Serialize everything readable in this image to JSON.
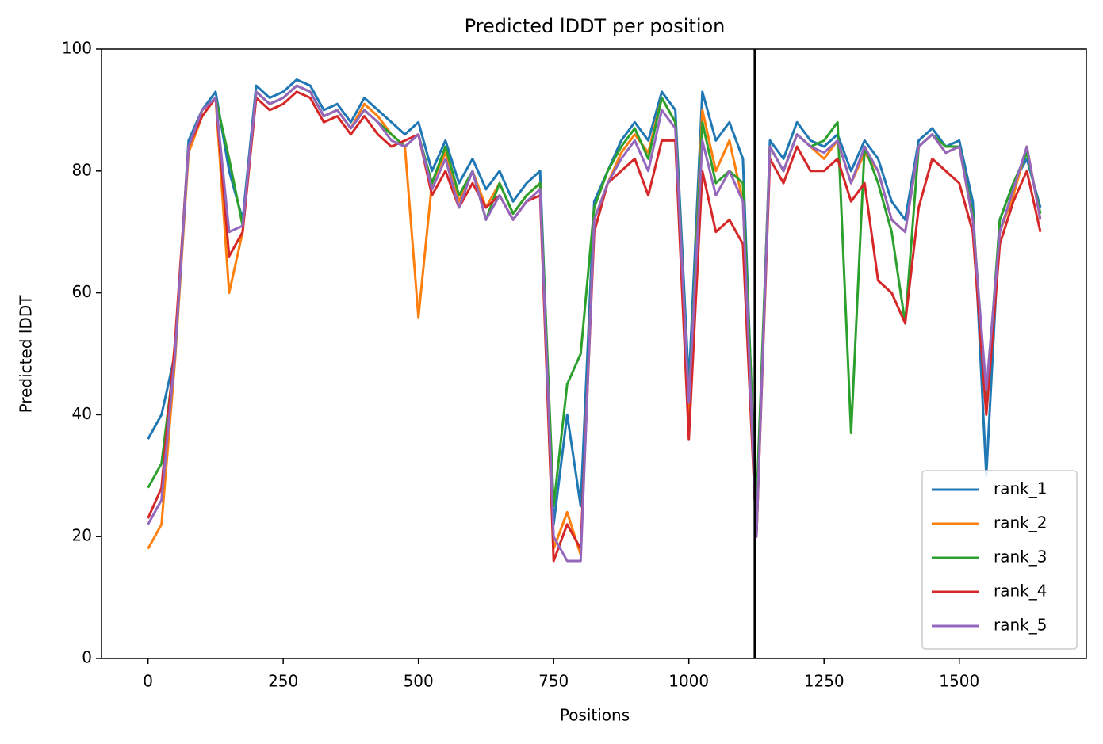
{
  "chart_data": {
    "type": "line",
    "title": "Predicted lDDT per position",
    "xlabel": "Positions",
    "ylabel": "Predicted lDDT",
    "x": [
      0,
      25,
      50,
      75,
      100,
      125,
      150,
      175,
      200,
      225,
      250,
      275,
      300,
      325,
      350,
      375,
      400,
      425,
      450,
      475,
      500,
      525,
      550,
      575,
      600,
      625,
      650,
      675,
      700,
      725,
      750,
      775,
      800,
      825,
      850,
      875,
      900,
      925,
      950,
      975,
      1000,
      1025,
      1050,
      1075,
      1100,
      1125,
      1150,
      1175,
      1200,
      1225,
      1250,
      1275,
      1300,
      1325,
      1350,
      1375,
      1400,
      1425,
      1450,
      1475,
      1500,
      1525,
      1550,
      1575,
      1600,
      1625,
      1650
    ],
    "series": [
      {
        "name": "rank_1",
        "color": "#1f77b4",
        "values": [
          36,
          40,
          50,
          85,
          90,
          93,
          80,
          72,
          94,
          92,
          93,
          95,
          94,
          90,
          91,
          88,
          92,
          90,
          88,
          86,
          88,
          80,
          85,
          78,
          82,
          77,
          80,
          75,
          78,
          80,
          22,
          40,
          25,
          75,
          80,
          85,
          88,
          85,
          93,
          90,
          45,
          93,
          85,
          88,
          82,
          22,
          85,
          82,
          88,
          85,
          84,
          86,
          80,
          85,
          82,
          75,
          72,
          85,
          87,
          84,
          85,
          75,
          30,
          72,
          78,
          82,
          74
        ]
      },
      {
        "name": "rank_2",
        "color": "#ff7f0e",
        "values": [
          18,
          22,
          49,
          83,
          89,
          92,
          60,
          70,
          93,
          91,
          92,
          94,
          93,
          89,
          90,
          87,
          91,
          89,
          86,
          84,
          56,
          78,
          83,
          75,
          80,
          74,
          78,
          73,
          76,
          78,
          18,
          24,
          17,
          72,
          78,
          83,
          86,
          83,
          92,
          88,
          40,
          90,
          80,
          85,
          75,
          20,
          84,
          80,
          86,
          84,
          82,
          85,
          78,
          83,
          80,
          72,
          70,
          84,
          86,
          83,
          84,
          72,
          40,
          70,
          76,
          84,
          72
        ]
      },
      {
        "name": "rank_3",
        "color": "#2ca02c",
        "values": [
          28,
          32,
          50,
          84,
          90,
          92,
          82,
          71,
          93,
          91,
          92,
          94,
          93,
          89,
          90,
          87,
          90,
          88,
          86,
          84,
          86,
          78,
          84,
          76,
          80,
          72,
          78,
          73,
          76,
          78,
          25,
          45,
          50,
          74,
          80,
          84,
          87,
          82,
          92,
          88,
          42,
          88,
          78,
          80,
          78,
          25,
          84,
          80,
          86,
          84,
          85,
          88,
          37,
          84,
          78,
          70,
          55,
          84,
          86,
          84,
          84,
          73,
          42,
          72,
          78,
          83,
          73
        ]
      },
      {
        "name": "rank_4",
        "color": "#d62728",
        "values": [
          23,
          28,
          52,
          84,
          89,
          92,
          66,
          70,
          92,
          90,
          91,
          93,
          92,
          88,
          89,
          86,
          89,
          86,
          84,
          85,
          86,
          76,
          80,
          74,
          78,
          74,
          76,
          72,
          75,
          76,
          16,
          22,
          18,
          70,
          78,
          80,
          82,
          76,
          85,
          85,
          36,
          80,
          70,
          72,
          68,
          20,
          82,
          78,
          84,
          80,
          80,
          82,
          75,
          78,
          62,
          60,
          55,
          74,
          82,
          80,
          78,
          70,
          40,
          68,
          75,
          80,
          70
        ]
      },
      {
        "name": "rank_5",
        "color": "#9467bd",
        "values": [
          22,
          26,
          50,
          84,
          90,
          92,
          70,
          71,
          93,
          91,
          92,
          94,
          93,
          89,
          90,
          87,
          90,
          88,
          85,
          84,
          86,
          77,
          82,
          74,
          80,
          72,
          76,
          72,
          75,
          77,
          20,
          16,
          16,
          72,
          78,
          82,
          85,
          80,
          90,
          87,
          42,
          85,
          76,
          80,
          75,
          20,
          84,
          80,
          86,
          84,
          83,
          85,
          78,
          84,
          80,
          72,
          70,
          84,
          86,
          83,
          84,
          72,
          44,
          70,
          77,
          84,
          72
        ]
      }
    ],
    "vlines": [
      1122
    ],
    "xlim": [
      -86,
      1735
    ],
    "ylim": [
      0,
      100
    ],
    "xticks": [
      0,
      250,
      500,
      750,
      1000,
      1250,
      1500
    ],
    "yticks": [
      0,
      20,
      40,
      60,
      80,
      100
    ],
    "grid": false,
    "legend": "lower right"
  }
}
